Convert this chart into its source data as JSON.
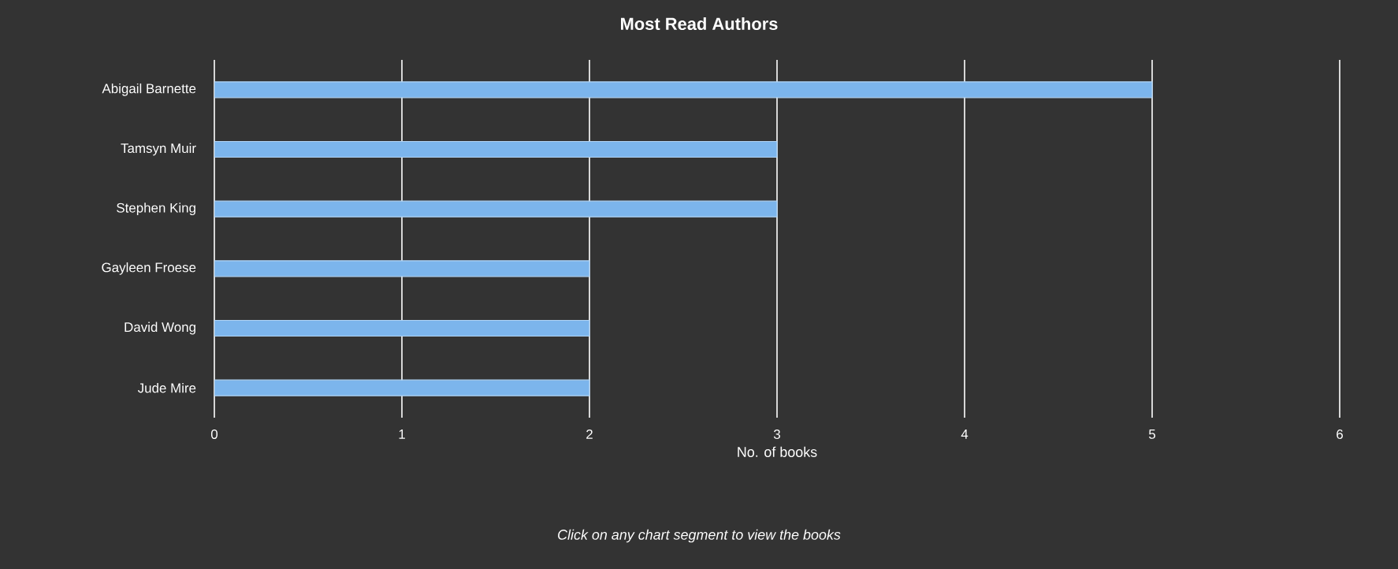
{
  "chart_data": {
    "type": "bar",
    "orientation": "horizontal",
    "title": "Most Read Authors",
    "xlabel": "No. of books",
    "categories": [
      "Abigail Barnette",
      "Tamsyn Muir",
      "Stephen King",
      "Gayleen Froese",
      "David Wong",
      "Jude Mire"
    ],
    "values": [
      5,
      3,
      3,
      2,
      2,
      2
    ],
    "color": "#7cb5ec",
    "xlim": [
      0,
      6
    ],
    "xticks": [
      0,
      1,
      2,
      3,
      4,
      5,
      6
    ],
    "grid": "x",
    "annotations": [
      "Click on any chart segment to view the books"
    ]
  }
}
